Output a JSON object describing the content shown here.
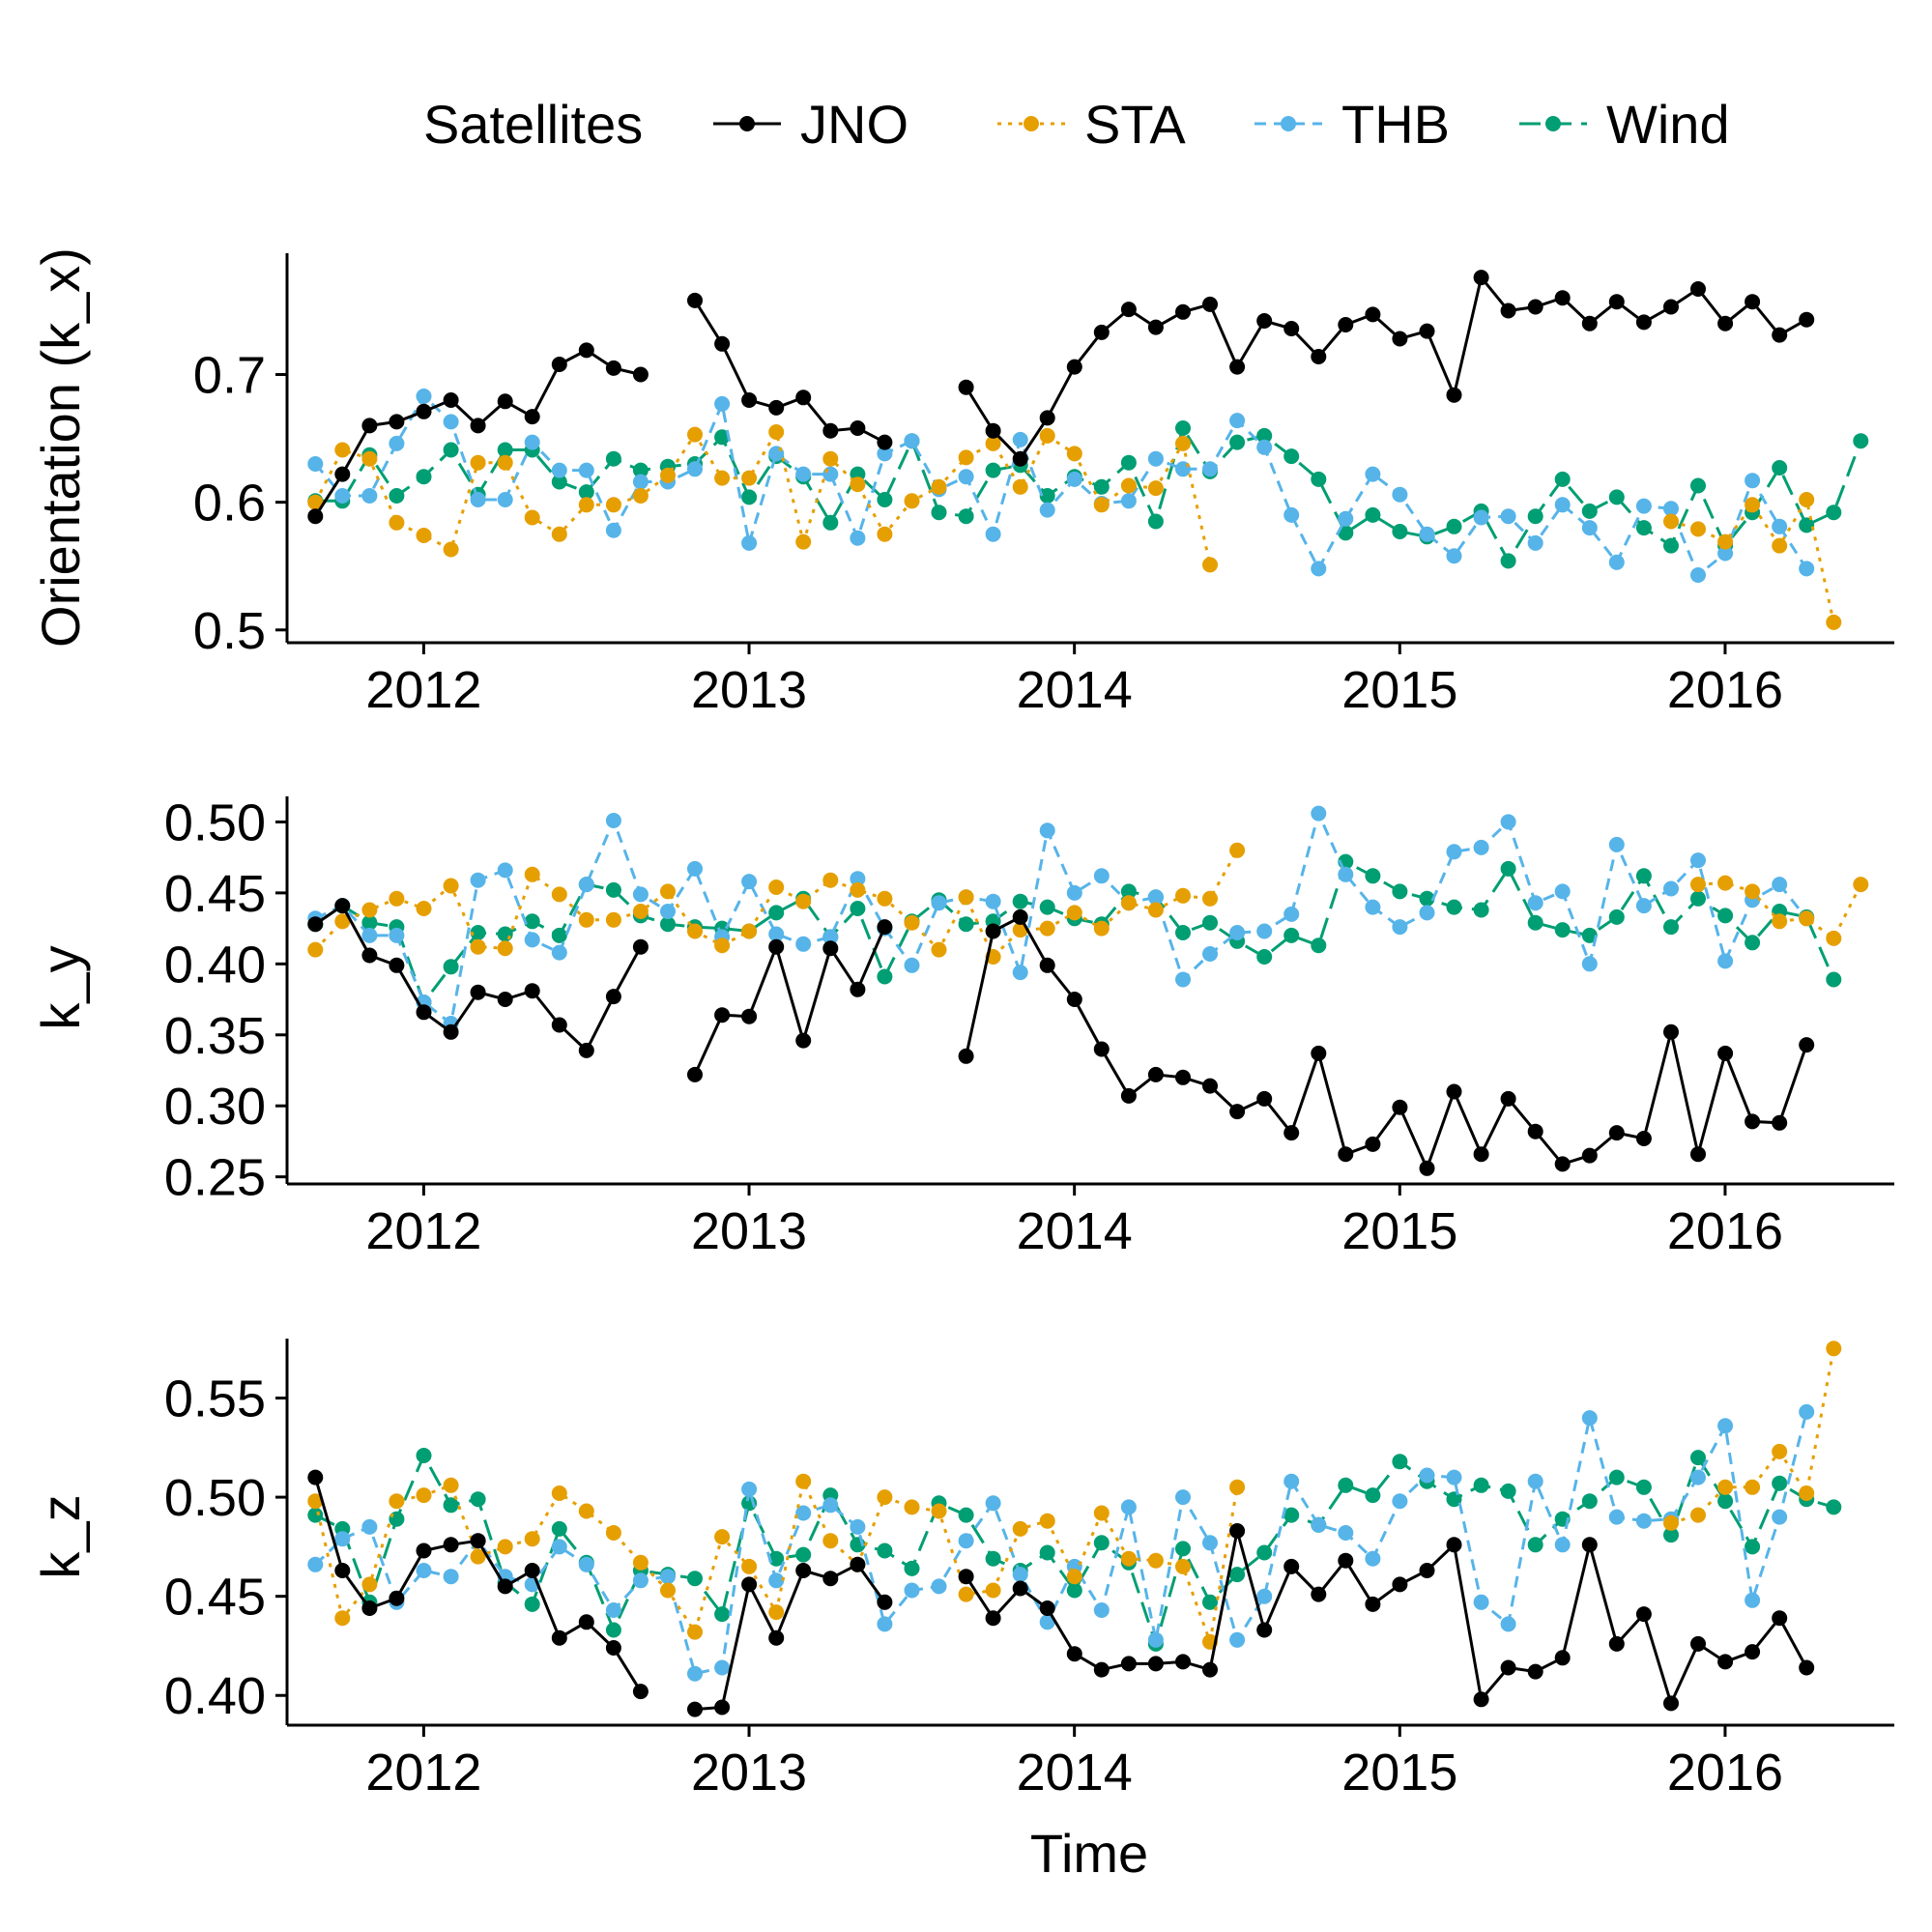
{
  "chart_data": {
    "type": "line",
    "legend": {
      "title": "Satellites",
      "position": "top",
      "entries": [
        {
          "name": "JNO",
          "color": "#000000",
          "dash": "solid"
        },
        {
          "name": "STA",
          "color": "#E69F00",
          "dash": "dotted"
        },
        {
          "name": "THB",
          "color": "#56B4E9",
          "dash": "dashed"
        },
        {
          "name": "Wind",
          "color": "#009E73",
          "dash": "longdash"
        }
      ]
    },
    "xlabel": "Time",
    "xlim": [
      2011.58,
      2016.52
    ],
    "xticks": [
      2012,
      2013,
      2014,
      2015,
      2016
    ],
    "xtick_labels": [
      "2012",
      "2013",
      "2014",
      "2015",
      "2016"
    ],
    "panels": [
      {
        "ylabel": "Orientation (k_x)",
        "ylim": [
          0.49,
          0.795
        ],
        "yticks": [
          0.5,
          0.6,
          0.7
        ],
        "ytick_labels": [
          "0.5",
          "0.6",
          "0.7"
        ],
        "series": {
          "JNO": [
            0.589,
            0.622,
            0.66,
            0.663,
            0.671,
            0.68,
            0.66,
            0.679,
            0.667,
            0.708,
            0.719,
            0.705,
            0.7,
            null,
            0.758,
            0.724,
            0.68,
            0.674,
            0.682,
            0.656,
            0.658,
            0.647,
            null,
            null,
            0.69,
            0.656,
            0.634,
            0.666,
            0.706,
            0.733,
            0.751,
            0.737,
            0.749,
            0.755,
            0.706,
            0.742,
            0.736,
            0.714,
            0.739,
            0.747,
            0.728,
            0.734,
            0.684,
            0.776,
            0.75,
            0.753,
            0.76,
            0.74,
            0.757,
            0.741,
            0.753,
            0.767,
            0.74,
            0.757,
            0.731,
            0.743
          ],
          "STA": [
            0.6,
            0.641,
            0.634,
            0.584,
            0.574,
            0.563,
            0.631,
            0.631,
            0.588,
            0.575,
            0.598,
            0.598,
            0.605,
            0.621,
            0.653,
            0.619,
            0.619,
            0.655,
            0.569,
            0.634,
            0.614,
            0.575,
            0.601,
            0.612,
            0.635,
            0.646,
            0.612,
            0.652,
            0.638,
            0.598,
            0.613,
            0.611,
            0.646,
            0.551,
            null,
            null,
            null,
            null,
            null,
            null,
            null,
            null,
            null,
            null,
            null,
            null,
            null,
            null,
            null,
            null,
            0.585,
            0.579,
            0.569,
            0.598,
            0.566,
            0.602,
            0.506
          ],
          "THB": [
            0.63,
            0.605,
            0.605,
            0.646,
            0.683,
            0.663,
            0.602,
            0.602,
            0.647,
            0.625,
            0.625,
            0.578,
            0.616,
            0.616,
            0.626,
            0.677,
            0.568,
            0.638,
            0.622,
            0.622,
            0.572,
            0.638,
            0.648,
            0.61,
            0.62,
            0.575,
            0.649,
            0.594,
            0.618,
            0.599,
            0.601,
            0.634,
            0.626,
            0.626,
            0.664,
            0.643,
            0.59,
            0.548,
            0.587,
            0.622,
            0.606,
            0.575,
            0.558,
            0.588,
            0.589,
            0.568,
            0.598,
            0.58,
            0.553,
            0.597,
            0.595,
            0.543,
            0.56,
            0.617,
            0.581,
            0.548
          ],
          "Wind": [
            0.601,
            0.601,
            0.637,
            0.605,
            0.62,
            0.641,
            0.606,
            0.641,
            0.641,
            0.616,
            0.608,
            0.634,
            0.625,
            0.628,
            0.63,
            0.651,
            0.604,
            0.636,
            0.62,
            0.584,
            0.622,
            0.602,
            0.648,
            0.592,
            0.589,
            0.625,
            0.629,
            0.605,
            0.62,
            0.612,
            0.631,
            0.585,
            0.658,
            0.624,
            0.647,
            0.652,
            0.636,
            0.618,
            0.576,
            0.59,
            0.577,
            0.573,
            0.581,
            0.593,
            0.554,
            0.589,
            0.618,
            0.593,
            0.604,
            0.58,
            0.566,
            0.613,
            0.566,
            0.592,
            0.627,
            0.582,
            0.592,
            0.648
          ]
        }
      },
      {
        "ylabel": "k_y",
        "ylim": [
          0.245,
          0.518
        ],
        "yticks": [
          0.25,
          0.3,
          0.35,
          0.4,
          0.45,
          0.5
        ],
        "ytick_labels": [
          "0.25",
          "0.30",
          "0.35",
          "0.40",
          "0.45",
          "0.50"
        ],
        "series": {
          "JNO": [
            0.428,
            0.441,
            0.406,
            0.399,
            0.366,
            0.352,
            0.38,
            0.375,
            0.381,
            0.357,
            0.339,
            0.377,
            0.412,
            null,
            0.322,
            0.364,
            0.363,
            0.412,
            0.346,
            0.411,
            0.382,
            0.426,
            null,
            null,
            0.335,
            0.423,
            0.433,
            0.399,
            0.375,
            0.34,
            0.307,
            0.322,
            0.32,
            0.314,
            0.296,
            0.305,
            0.281,
            0.337,
            0.266,
            0.273,
            0.299,
            0.256,
            0.31,
            0.266,
            0.305,
            0.282,
            0.259,
            0.265,
            0.281,
            0.277,
            0.352,
            0.266,
            0.337,
            0.289,
            0.288,
            0.343
          ],
          "STA": [
            0.41,
            0.43,
            0.438,
            0.446,
            0.439,
            0.455,
            0.412,
            0.411,
            0.463,
            0.449,
            0.431,
            0.431,
            0.437,
            0.451,
            0.423,
            0.413,
            0.423,
            0.454,
            0.444,
            0.459,
            0.452,
            0.446,
            0.429,
            0.41,
            0.447,
            0.405,
            0.424,
            0.425,
            0.436,
            0.425,
            0.443,
            0.438,
            0.448,
            0.446,
            0.48,
            null,
            null,
            null,
            null,
            null,
            null,
            null,
            null,
            null,
            null,
            null,
            null,
            null,
            null,
            null,
            null,
            0.456,
            0.457,
            0.451,
            0.43,
            0.432,
            0.418,
            0.456
          ],
          "THB": [
            0.432,
            0.441,
            0.42,
            0.42,
            0.373,
            0.358,
            0.459,
            0.466,
            0.417,
            0.408,
            0.456,
            0.501,
            0.449,
            0.437,
            0.467,
            0.419,
            0.458,
            0.421,
            0.414,
            0.419,
            0.46,
            0.425,
            0.399,
            0.443,
            0.447,
            0.444,
            0.394,
            0.494,
            0.45,
            0.462,
            0.443,
            0.447,
            0.389,
            0.407,
            0.422,
            0.423,
            0.435,
            0.506,
            0.463,
            0.44,
            0.426,
            0.436,
            0.479,
            0.482,
            0.5,
            0.443,
            0.451,
            0.4,
            0.484,
            0.441,
            0.453,
            0.473,
            0.402,
            0.445,
            0.456,
            0.432
          ],
          "Wind": [
            0.428,
            0.441,
            0.429,
            0.426,
            0.373,
            0.398,
            0.422,
            0.421,
            0.43,
            0.42,
            0.456,
            0.452,
            0.434,
            0.428,
            0.426,
            0.425,
            0.423,
            0.436,
            0.446,
            0.419,
            0.439,
            0.391,
            0.43,
            0.445,
            0.428,
            0.43,
            0.444,
            0.44,
            0.432,
            0.428,
            0.451,
            0.447,
            0.422,
            0.429,
            0.416,
            0.405,
            0.42,
            0.413,
            0.472,
            0.462,
            0.451,
            0.446,
            0.44,
            0.438,
            0.467,
            0.429,
            0.424,
            0.42,
            0.433,
            0.462,
            0.426,
            0.446,
            0.434,
            0.415,
            0.437,
            0.433,
            0.389
          ]
        }
      },
      {
        "ylabel": "k_z",
        "ylim": [
          0.385,
          0.58
        ],
        "yticks": [
          0.4,
          0.45,
          0.5,
          0.55
        ],
        "ytick_labels": [
          "0.40",
          "0.45",
          "0.50",
          "0.55"
        ],
        "series": {
          "JNO": [
            0.51,
            0.463,
            0.444,
            0.449,
            0.473,
            0.476,
            0.478,
            0.455,
            0.463,
            0.429,
            0.437,
            0.424,
            0.402,
            null,
            0.393,
            0.394,
            0.456,
            0.429,
            0.463,
            0.459,
            0.466,
            0.447,
            null,
            null,
            0.46,
            0.439,
            0.454,
            0.444,
            0.421,
            0.413,
            0.416,
            0.416,
            0.417,
            0.413,
            0.483,
            0.433,
            0.465,
            0.451,
            0.468,
            0.446,
            0.456,
            0.463,
            0.476,
            0.398,
            0.414,
            0.412,
            0.419,
            0.476,
            0.426,
            0.441,
            0.396,
            0.426,
            0.417,
            0.422,
            0.439,
            0.414
          ],
          "STA": [
            0.498,
            0.439,
            0.456,
            0.498,
            0.501,
            0.506,
            0.47,
            0.475,
            0.479,
            0.502,
            0.493,
            0.482,
            0.467,
            0.453,
            0.432,
            0.48,
            0.465,
            0.442,
            0.508,
            0.478,
            0.466,
            0.5,
            0.495,
            0.493,
            0.451,
            0.453,
            0.484,
            0.488,
            0.46,
            0.492,
            0.469,
            0.468,
            0.465,
            0.427,
            0.505,
            null,
            null,
            null,
            null,
            null,
            null,
            null,
            null,
            null,
            null,
            null,
            null,
            null,
            null,
            null,
            0.487,
            0.491,
            0.505,
            0.505,
            0.523,
            0.502,
            0.575
          ],
          "THB": [
            0.466,
            0.479,
            0.485,
            0.447,
            0.463,
            0.46,
            0.478,
            0.46,
            0.456,
            0.475,
            0.466,
            0.443,
            0.458,
            0.46,
            0.411,
            0.414,
            0.504,
            0.458,
            0.492,
            0.496,
            0.485,
            0.436,
            0.453,
            0.455,
            0.478,
            0.497,
            0.461,
            0.437,
            0.465,
            0.443,
            0.495,
            0.428,
            0.5,
            0.477,
            0.428,
            0.45,
            0.508,
            0.486,
            0.482,
            0.469,
            0.498,
            0.511,
            0.51,
            0.447,
            0.436,
            0.508,
            0.476,
            0.54,
            0.49,
            0.488,
            0.489,
            0.51,
            0.536,
            0.448,
            0.49,
            0.543
          ],
          "Wind": [
            0.491,
            0.484,
            0.447,
            0.489,
            0.521,
            0.496,
            0.499,
            0.457,
            0.446,
            0.484,
            0.467,
            0.433,
            0.463,
            0.461,
            0.459,
            0.441,
            0.497,
            0.469,
            0.471,
            0.501,
            0.476,
            0.473,
            0.464,
            0.497,
            0.491,
            0.469,
            0.463,
            0.472,
            0.453,
            0.477,
            0.467,
            0.426,
            0.474,
            0.447,
            0.461,
            0.472,
            0.491,
            0.486,
            0.506,
            0.501,
            0.518,
            0.508,
            0.499,
            0.506,
            0.503,
            0.476,
            0.489,
            0.498,
            0.51,
            0.505,
            0.481,
            0.52,
            0.498,
            0.475,
            0.507,
            0.499,
            0.495
          ]
        }
      }
    ]
  }
}
